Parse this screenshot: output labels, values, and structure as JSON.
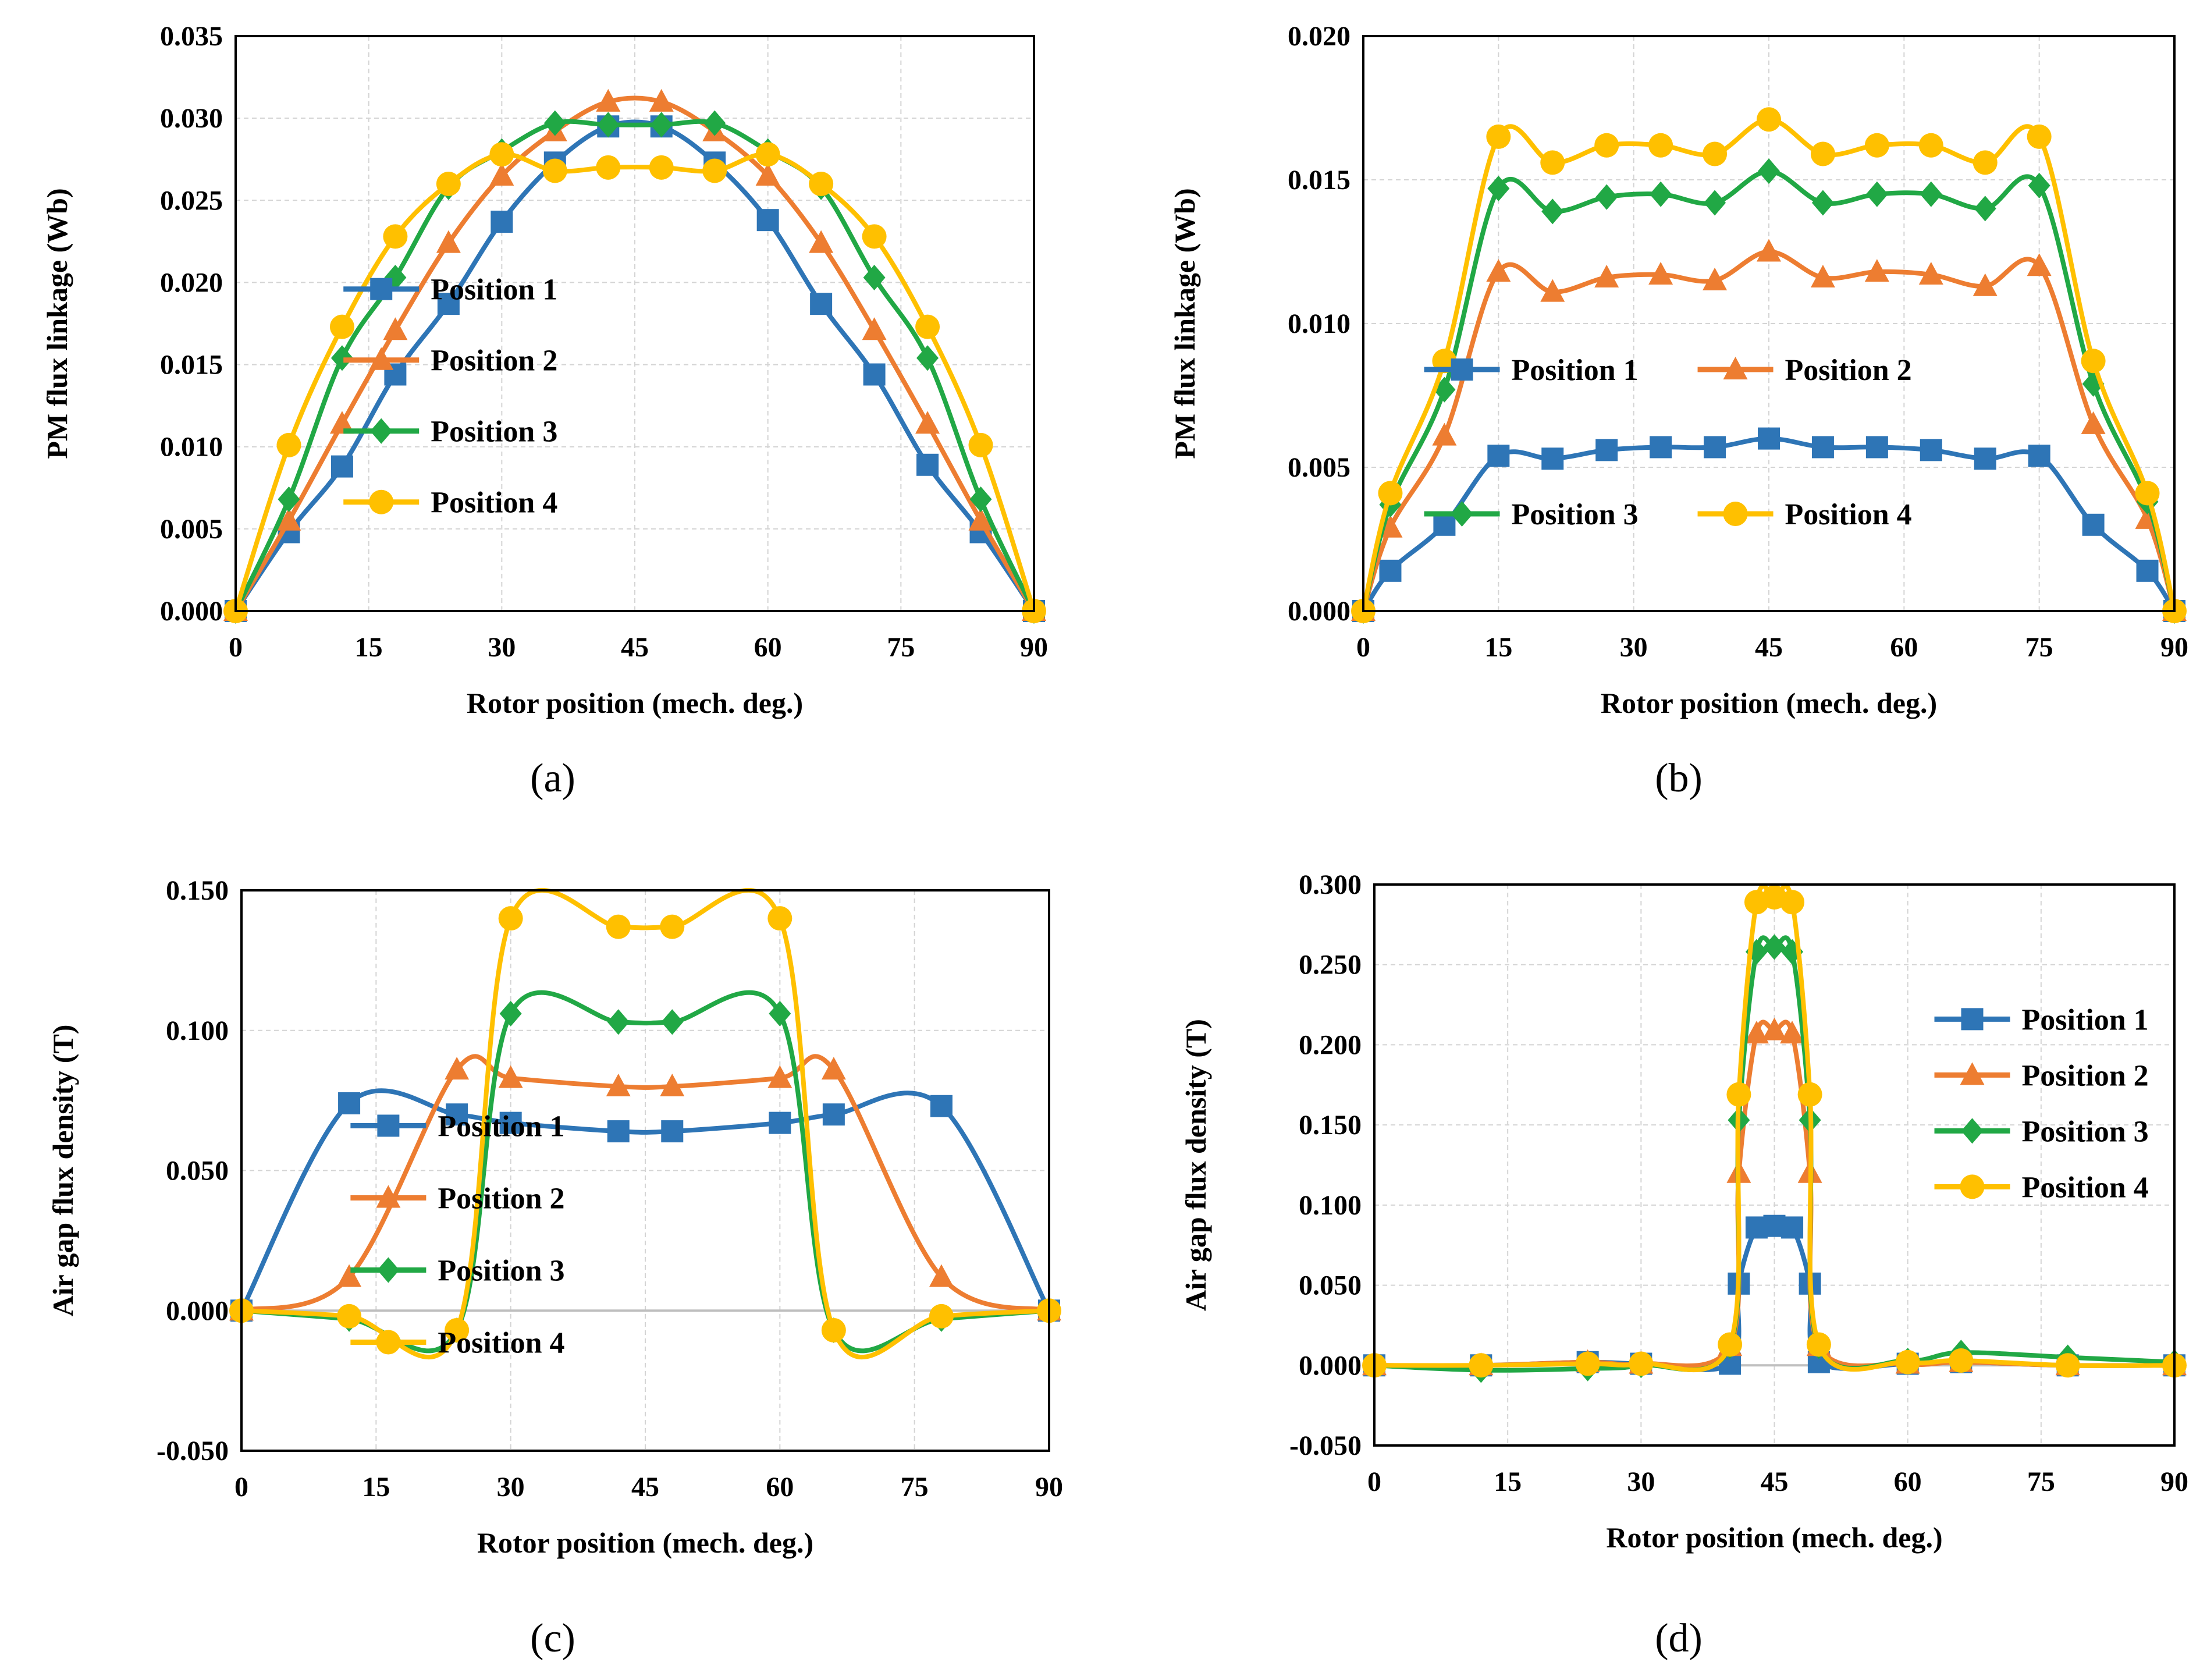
{
  "figure": {
    "panel_labels": [
      "(a)",
      "(b)",
      "(c)",
      "(d)"
    ]
  },
  "colors": {
    "position1": "#2E75B6",
    "position2": "#ED7D31",
    "position3": "#21A845",
    "position4": "#FFC000"
  },
  "chart_data": [
    {
      "id": "a",
      "type": "line",
      "xlabel": "Rotor position (mech. deg.)",
      "ylabel": "PM flux linkage (Wb)",
      "xlim": [
        0,
        90
      ],
      "xticks": [
        0,
        15,
        30,
        45,
        60,
        75,
        90
      ],
      "ylim": [
        0,
        0.035
      ],
      "yticks": [
        0,
        0.005,
        0.01,
        0.015,
        0.02,
        0.025,
        0.03,
        0.035
      ],
      "ytick_labels": [
        "0.000",
        "0.005",
        "0.010",
        "0.015",
        "0.020",
        "0.025",
        "0.030",
        "0.035"
      ],
      "legend": [
        "Position 1",
        "Position 2",
        "Position 3",
        "Position 4"
      ],
      "legend_layout": "single-column-center",
      "series": [
        {
          "name": "Position 1",
          "marker": "square",
          "x": [
            0,
            6,
            12,
            18,
            24,
            30,
            36,
            42,
            48,
            54,
            60,
            66,
            72,
            78,
            84,
            90
          ],
          "values": [
            0,
            0.0048,
            0.0088,
            0.0144,
            0.0187,
            0.0237,
            0.0273,
            0.0295,
            0.0295,
            0.0273,
            0.0238,
            0.0187,
            0.0144,
            0.0089,
            0.0048,
            0
          ]
        },
        {
          "name": "Position 2",
          "marker": "triangle",
          "x": [
            0,
            6,
            12,
            18,
            24,
            30,
            36,
            42,
            48,
            54,
            60,
            66,
            72,
            78,
            84,
            90
          ],
          "values": [
            0,
            0.0055,
            0.0114,
            0.0171,
            0.0224,
            0.0265,
            0.0292,
            0.031,
            0.031,
            0.0292,
            0.0265,
            0.0224,
            0.0171,
            0.0114,
            0.0055,
            0
          ]
        },
        {
          "name": "Position 3",
          "marker": "diamond",
          "x": [
            0,
            6,
            12,
            18,
            24,
            30,
            36,
            42,
            48,
            54,
            60,
            66,
            72,
            78,
            84,
            90
          ],
          "values": [
            0,
            0.0068,
            0.0154,
            0.0203,
            0.0258,
            0.028,
            0.0297,
            0.0296,
            0.0296,
            0.0297,
            0.028,
            0.0258,
            0.0203,
            0.0154,
            0.0068,
            0
          ]
        },
        {
          "name": "Position 4",
          "marker": "circle",
          "x": [
            0,
            6,
            12,
            18,
            24,
            30,
            36,
            42,
            48,
            54,
            60,
            66,
            72,
            78,
            84,
            90
          ],
          "values": [
            0,
            0.0101,
            0.0173,
            0.0228,
            0.026,
            0.0278,
            0.0268,
            0.027,
            0.027,
            0.0268,
            0.0278,
            0.026,
            0.0228,
            0.0173,
            0.0101,
            0
          ]
        }
      ]
    },
    {
      "id": "b",
      "type": "line",
      "xlabel": "Rotor position (mech. deg.)",
      "ylabel": "PM flux linkage (Wb)",
      "xlim": [
        0,
        90
      ],
      "xticks": [
        0,
        15,
        30,
        45,
        60,
        75,
        90
      ],
      "ylim": [
        0,
        0.02
      ],
      "yticks": [
        0,
        0.005,
        0.01,
        0.015,
        0.02
      ],
      "ytick_labels": [
        "0.000",
        "0.005",
        "0.010",
        "0.015",
        "0.020"
      ],
      "legend": [
        "Position 1",
        "Position 2",
        "Position 3",
        "Position 4"
      ],
      "legend_layout": "two-column-center",
      "series": [
        {
          "name": "Position 1",
          "marker": "square",
          "x": [
            0,
            3,
            9,
            15,
            21,
            27,
            33,
            39,
            45,
            51,
            57,
            63,
            69,
            75,
            81,
            87,
            90
          ],
          "values": [
            0,
            0.0014,
            0.003,
            0.0054,
            0.0053,
            0.0056,
            0.0057,
            0.0057,
            0.006,
            0.0057,
            0.0057,
            0.0056,
            0.0053,
            0.0054,
            0.003,
            0.0014,
            0
          ]
        },
        {
          "name": "Position 2",
          "marker": "triangle",
          "x": [
            0,
            3,
            9,
            15,
            21,
            27,
            33,
            39,
            45,
            51,
            57,
            63,
            69,
            75,
            81,
            87,
            90
          ],
          "values": [
            0,
            0.0029,
            0.0061,
            0.0118,
            0.0111,
            0.0116,
            0.0117,
            0.0115,
            0.0125,
            0.0116,
            0.0118,
            0.0117,
            0.0113,
            0.012,
            0.0065,
            0.0032,
            0
          ]
        },
        {
          "name": "Position 3",
          "marker": "diamond",
          "x": [
            0,
            3,
            9,
            15,
            21,
            27,
            33,
            39,
            45,
            51,
            57,
            63,
            69,
            75,
            81,
            87,
            90
          ],
          "values": [
            0,
            0.0037,
            0.0077,
            0.0147,
            0.0139,
            0.0144,
            0.0145,
            0.0142,
            0.0153,
            0.0142,
            0.0145,
            0.0145,
            0.014,
            0.0148,
            0.0079,
            0.0038,
            0
          ]
        },
        {
          "name": "Position 4",
          "marker": "circle",
          "x": [
            0,
            3,
            9,
            15,
            21,
            27,
            33,
            39,
            45,
            51,
            57,
            63,
            69,
            75,
            81,
            87,
            90
          ],
          "values": [
            0,
            0.0041,
            0.0087,
            0.0165,
            0.0156,
            0.0162,
            0.0162,
            0.0159,
            0.0171,
            0.0159,
            0.0162,
            0.0162,
            0.0156,
            0.0165,
            0.0087,
            0.0041,
            0
          ]
        }
      ]
    },
    {
      "id": "c",
      "type": "line",
      "xlabel": "Rotor position (mech. deg.)",
      "ylabel": "Air gap flux density (T)",
      "xlim": [
        0,
        90
      ],
      "xticks": [
        0,
        15,
        30,
        45,
        60,
        75,
        90
      ],
      "ylim": [
        -0.05,
        0.15
      ],
      "yticks": [
        -0.05,
        0,
        0.05,
        0.1,
        0.15
      ],
      "ytick_labels": [
        "-0.050",
        "0.000",
        "0.050",
        "0.100",
        "0.150"
      ],
      "legend": [
        "Position 1",
        "Position 2",
        "Position 3",
        "Position 4"
      ],
      "legend_layout": "single-column-center",
      "series": [
        {
          "name": "Position 1",
          "marker": "square",
          "x": [
            0,
            12,
            24,
            30,
            42,
            48,
            60,
            66,
            78,
            90
          ],
          "values": [
            0,
            0.074,
            0.07,
            0.067,
            0.064,
            0.064,
            0.067,
            0.07,
            0.073,
            0
          ]
        },
        {
          "name": "Position 2",
          "marker": "triangle",
          "x": [
            0,
            12,
            24,
            30,
            42,
            48,
            60,
            66,
            78,
            90
          ],
          "values": [
            0,
            0.012,
            0.086,
            0.083,
            0.08,
            0.08,
            0.083,
            0.086,
            0.012,
            0
          ]
        },
        {
          "name": "Position 3",
          "marker": "diamond",
          "x": [
            0,
            12,
            24,
            30,
            42,
            48,
            60,
            66,
            78,
            90
          ],
          "values": [
            0,
            -0.003,
            -0.007,
            0.106,
            0.103,
            0.103,
            0.106,
            -0.007,
            -0.003,
            0
          ]
        },
        {
          "name": "Position 4",
          "marker": "circle",
          "x": [
            0,
            12,
            24,
            30,
            42,
            48,
            60,
            66,
            78,
            90
          ],
          "values": [
            0,
            -0.002,
            -0.007,
            0.14,
            0.137,
            0.137,
            0.14,
            -0.007,
            -0.002,
            0
          ]
        }
      ]
    },
    {
      "id": "d",
      "type": "line",
      "xlabel": "Rotor position (mech. deg.)",
      "ylabel": "Air gap flux density (T)",
      "xlim": [
        0,
        90
      ],
      "xticks": [
        0,
        15,
        30,
        45,
        60,
        75,
        90
      ],
      "ylim": [
        -0.05,
        0.3
      ],
      "yticks": [
        -0.05,
        0,
        0.05,
        0.1,
        0.15,
        0.2,
        0.25,
        0.3
      ],
      "ytick_labels": [
        "-0.050",
        "0.000",
        "0.050",
        "0.100",
        "0.150",
        "0.200",
        "0.250",
        "0.300"
      ],
      "legend": [
        "Position 1",
        "Position 2",
        "Position 3",
        "Position 4"
      ],
      "legend_layout": "single-column-right",
      "series": [
        {
          "name": "Position 1",
          "marker": "square",
          "x": [
            0,
            12,
            24,
            30,
            40,
            41,
            43,
            45,
            47,
            49,
            50,
            60,
            66,
            78,
            90
          ],
          "values": [
            0,
            0,
            0.002,
            0.001,
            0.001,
            0.051,
            0.086,
            0.087,
            0.086,
            0.051,
            0.002,
            0.001,
            0.002,
            0,
            0
          ]
        },
        {
          "name": "Position 2",
          "marker": "triangle",
          "x": [
            0,
            12,
            24,
            30,
            40,
            41,
            43,
            45,
            47,
            49,
            50,
            60,
            66,
            78,
            90
          ],
          "values": [
            0,
            0,
            0.002,
            0.001,
            0.012,
            0.12,
            0.207,
            0.209,
            0.207,
            0.12,
            0.012,
            0.001,
            0.002,
            0,
            0
          ]
        },
        {
          "name": "Position 3",
          "marker": "diamond",
          "x": [
            0,
            12,
            24,
            30,
            40,
            41,
            43,
            45,
            47,
            49,
            50,
            60,
            66,
            78,
            90
          ],
          "values": [
            0,
            -0.003,
            -0.002,
            0,
            0.012,
            0.153,
            0.258,
            0.261,
            0.258,
            0.153,
            0.012,
            0.003,
            0.008,
            0.005,
            0.002
          ]
        },
        {
          "name": "Position 4",
          "marker": "circle",
          "x": [
            0,
            12,
            24,
            30,
            40,
            41,
            43,
            45,
            47,
            49,
            50,
            60,
            66,
            78,
            90
          ],
          "values": [
            0,
            0,
            0.001,
            0.001,
            0.013,
            0.169,
            0.289,
            0.292,
            0.289,
            0.169,
            0.013,
            0.002,
            0.003,
            0,
            0
          ]
        }
      ]
    }
  ]
}
